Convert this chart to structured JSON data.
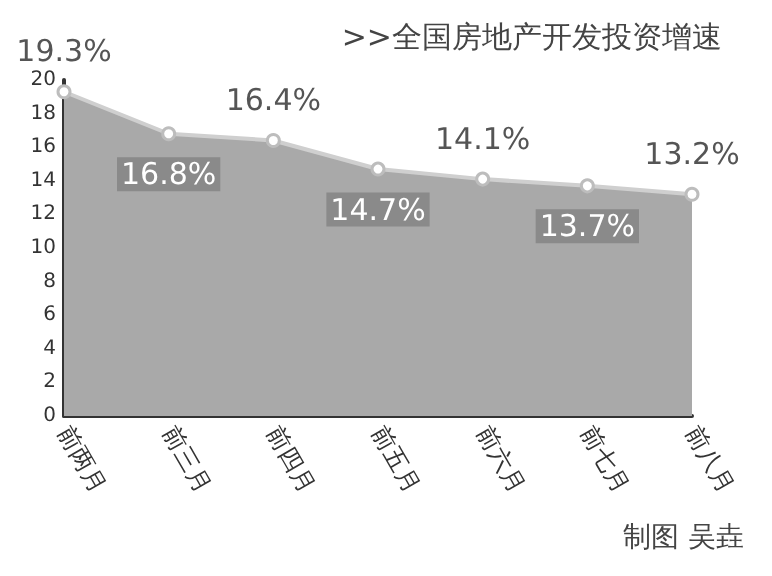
{
  "chart_data": {
    "type": "area",
    "title": ">>全国房地产开发投资增速",
    "categories": [
      "前两月",
      "前三月",
      "前四月",
      "前五月",
      "前六月",
      "前七月",
      "前八月"
    ],
    "series": [
      {
        "color": "#a9a9a9",
        "values": [
          19.3,
          16.8,
          16.4,
          14.7,
          14.1,
          13.7,
          13.2
        ],
        "value_labels": [
          "19.3%",
          "16.8%",
          "16.4%",
          "14.7%",
          "14.1%",
          "13.7%",
          "13.2%"
        ]
      }
    ],
    "ylim": [
      0,
      20
    ],
    "yticks": [
      0,
      2,
      4,
      6,
      8,
      10,
      12,
      14,
      16,
      18,
      20
    ],
    "grid": false,
    "marker": "circle",
    "annotations": [
      "制图 吴垚"
    ]
  }
}
